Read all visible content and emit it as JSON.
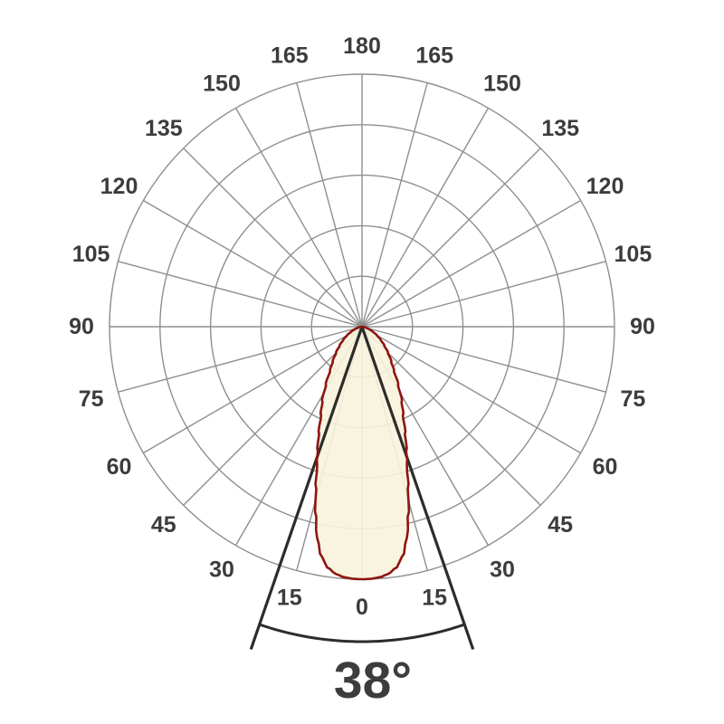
{
  "chart_data": {
    "type": "polar",
    "title": "",
    "description": "Photometric polar light-distribution curve (luminous intensity lobe) with a 38 degree beam angle",
    "beam_angle_deg": 38,
    "beam_angle_label": "38°",
    "beam_half_angle_deg": 19,
    "angle_ticks_deg": [
      0,
      15,
      30,
      45,
      60,
      75,
      90,
      105,
      120,
      135,
      150,
      165,
      180
    ],
    "angle_step_deg": 15,
    "rings": 5,
    "grid_on": true,
    "peak_intensity_fraction": 1.0,
    "intensity_profile": [
      [
        0,
        1.0
      ],
      [
        2,
        0.999
      ],
      [
        4,
        0.995
      ],
      [
        6,
        0.985
      ],
      [
        8,
        0.965
      ],
      [
        10,
        0.925
      ],
      [
        12,
        0.855
      ],
      [
        14,
        0.76
      ],
      [
        16,
        0.663
      ],
      [
        18,
        0.575
      ],
      [
        20,
        0.515
      ],
      [
        22,
        0.455
      ],
      [
        25,
        0.385
      ],
      [
        28,
        0.335
      ],
      [
        32,
        0.27
      ],
      [
        36,
        0.215
      ],
      [
        40,
        0.18
      ],
      [
        45,
        0.145
      ],
      [
        50,
        0.115
      ],
      [
        55,
        0.09
      ],
      [
        60,
        0.068
      ],
      [
        65,
        0.048
      ],
      [
        70,
        0.032
      ],
      [
        75,
        0.018
      ],
      [
        80,
        0.008
      ],
      [
        85,
        0.002
      ],
      [
        90,
        0.0
      ]
    ],
    "colors": {
      "background": "#FFFFFF",
      "grid": "#8F8F8F",
      "tick_label": "#3C3C3C",
      "lobe_fill": "#F7F3DC",
      "lobe_stroke": "#8E1510",
      "marker": "#2C2C2C",
      "beam_label": "#3C3C3C"
    }
  }
}
